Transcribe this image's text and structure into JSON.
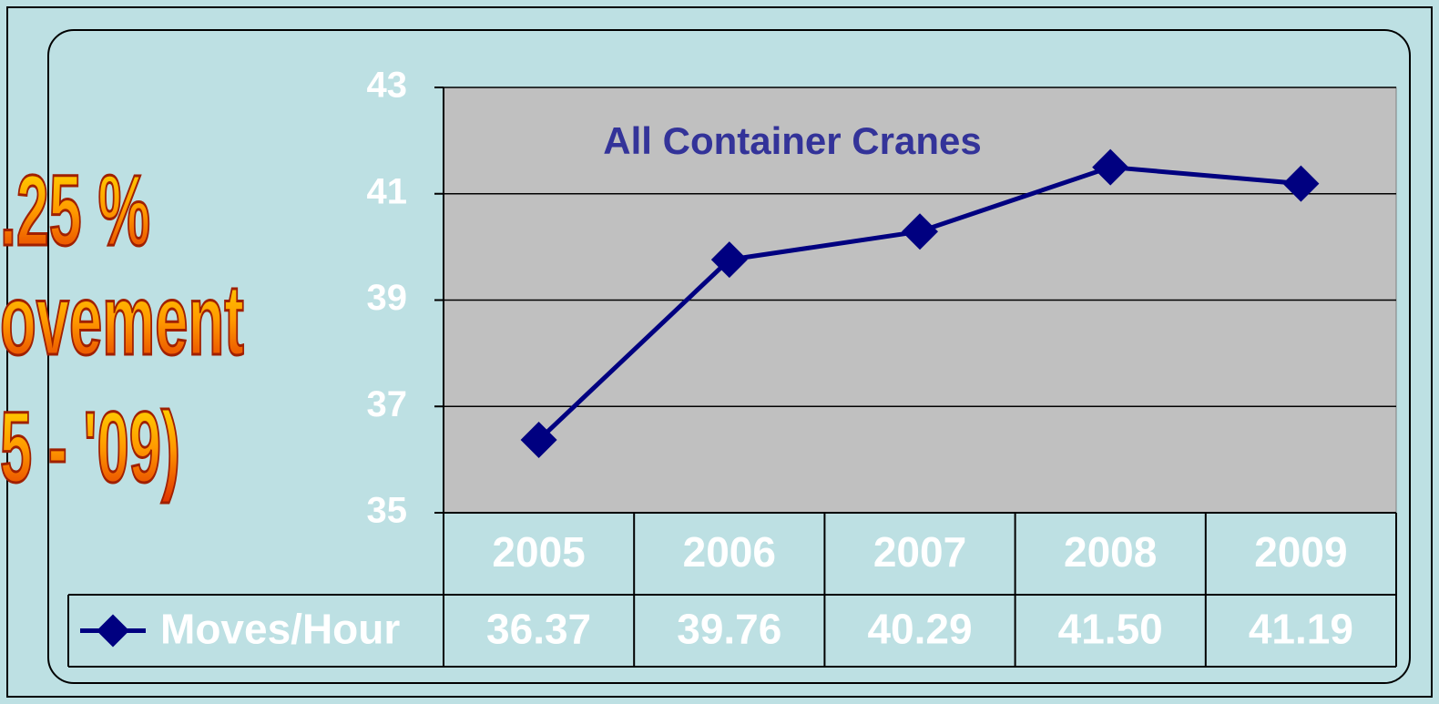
{
  "chart_data": {
    "type": "line",
    "title": "All Container Cranes",
    "annotations": [
      ".25 %",
      "ovement",
      "5 - '09)"
    ],
    "categories": [
      "2005",
      "2006",
      "2007",
      "2008",
      "2009"
    ],
    "series": [
      {
        "name": "Moves/Hour",
        "color": "#000080",
        "values": [
          36.37,
          39.76,
          40.29,
          41.5,
          41.19
        ],
        "value_labels": [
          "36.37",
          "39.76",
          "40.29",
          "41.50",
          "41.19"
        ]
      }
    ],
    "ylim": [
      35,
      43
    ],
    "yticks": [
      35,
      37,
      39,
      41,
      43
    ],
    "grid": true
  }
}
